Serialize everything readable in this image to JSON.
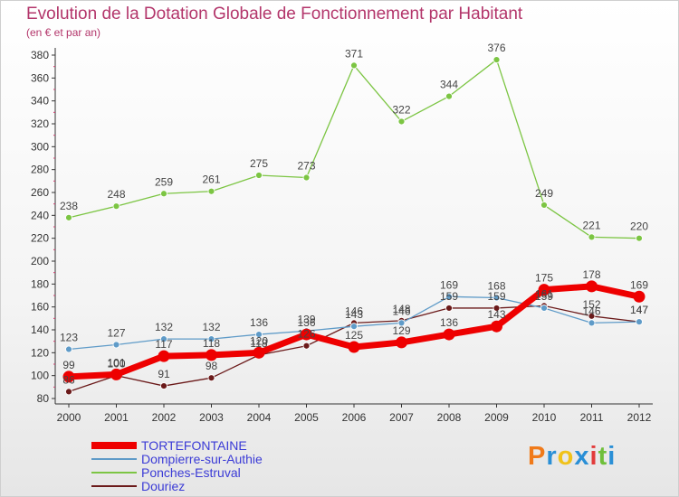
{
  "title": "Evolution de la Dotation Globale de Fonctionnement par Habitant",
  "subtitle": "(en € et par an)",
  "logo": {
    "letters": [
      "P",
      "r",
      "o",
      "x",
      "i",
      "t",
      "i"
    ],
    "colors": [
      "#f07a1a",
      "#2a8fd6",
      "#f0c21a",
      "#2a8fd6",
      "#e23b3b",
      "#6fbf3a",
      "#2a8fd6"
    ]
  },
  "chart_data": {
    "type": "line",
    "title": "Evolution de la Dotation Globale de Fonctionnement par Habitant",
    "ylabel": "(en € et par an)",
    "xlabel": "",
    "ylim": [
      80,
      380
    ],
    "yticks": [
      80,
      100,
      120,
      140,
      160,
      180,
      200,
      220,
      240,
      260,
      280,
      300,
      320,
      340,
      360,
      380
    ],
    "categories": [
      "2000",
      "2001",
      "2002",
      "2003",
      "2004",
      "2005",
      "2006",
      "2007",
      "2008",
      "2009",
      "2010",
      "2011",
      "2012"
    ],
    "grid": false,
    "legend_position": "bottom",
    "series": [
      {
        "name": "TORTEFONTAINE",
        "color": "#ee0000",
        "values": [
          99,
          101,
          117,
          118,
          120,
          136,
          125,
          129,
          136,
          143,
          175,
          178,
          169
        ]
      },
      {
        "name": "Dompierre-sur-Authie",
        "color": "#5f9bc8",
        "values": [
          123,
          127,
          132,
          132,
          136,
          139,
          143,
          146,
          169,
          168,
          159,
          146,
          147
        ]
      },
      {
        "name": "Ponches-Estruval",
        "color": "#7cc543",
        "values": [
          238,
          248,
          259,
          261,
          275,
          273,
          371,
          322,
          344,
          376,
          249,
          221,
          220
        ]
      },
      {
        "name": "Douriez",
        "color": "#6b1a1a",
        "values": [
          86,
          100,
          91,
          98,
          118,
          126,
          146,
          148,
          159,
          159,
          161,
          152,
          147
        ]
      }
    ]
  }
}
